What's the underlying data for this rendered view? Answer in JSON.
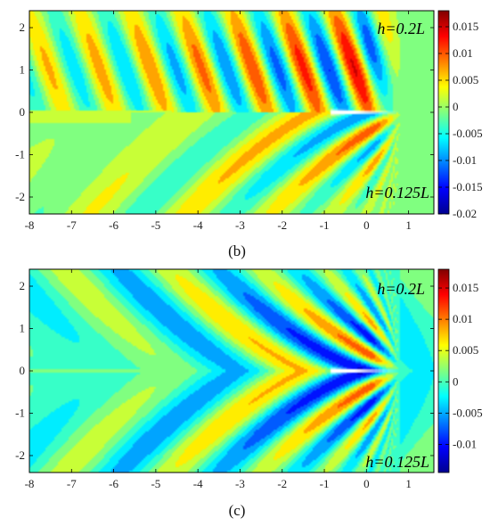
{
  "chart_data": [
    {
      "type": "heatmap",
      "panel_label": "(b)",
      "x_ticks": [
        -8,
        -7,
        -6,
        -5,
        -4,
        -3,
        -2,
        -1,
        0,
        1
      ],
      "y_ticks": [
        2,
        1,
        0,
        -1,
        -2
      ],
      "xlim": [
        -8,
        1.6
      ],
      "ylim": [
        -2.4,
        2.4
      ],
      "annotations": {
        "upper": "h=0.2L",
        "lower": "h=0.125L"
      },
      "colorbar": {
        "range": [
          -0.02,
          0.018
        ],
        "ticks": [
          "0.015",
          "0.01",
          "0.005",
          "0",
          "-0.005",
          "-0.01",
          "-0.015",
          "-0.02"
        ],
        "tick_values": [
          0.015,
          0.01,
          0.005,
          0,
          -0.005,
          -0.01,
          -0.015,
          -0.02
        ]
      },
      "field": {
        "mode": "narrow"
      }
    },
    {
      "type": "heatmap",
      "panel_label": "(c)",
      "x_ticks": [
        -8,
        -7,
        -6,
        -5,
        -4,
        -3,
        -2,
        -1,
        0,
        1
      ],
      "y_ticks": [
        2,
        1,
        0,
        -1,
        -2
      ],
      "xlim": [
        -8,
        1.6
      ],
      "ylim": [
        -2.4,
        2.4
      ],
      "annotations": {
        "upper": "h=0.2L",
        "lower": "h=0.125L"
      },
      "colorbar": {
        "range": [
          -0.0145,
          0.018
        ],
        "ticks": [
          "0.015",
          "0.01",
          "0.005",
          "0",
          "-0.005",
          "-0.01"
        ],
        "tick_values": [
          0.015,
          0.01,
          0.005,
          0,
          -0.005,
          -0.01
        ]
      },
      "field": {
        "mode": "wide"
      }
    }
  ],
  "colors": {
    "jet": [
      "#00008f",
      "#0000ff",
      "#0080ff",
      "#00ffff",
      "#80ff80",
      "#ffff00",
      "#ff8000",
      "#ff0000",
      "#800000"
    ],
    "background": "#ffffff"
  }
}
